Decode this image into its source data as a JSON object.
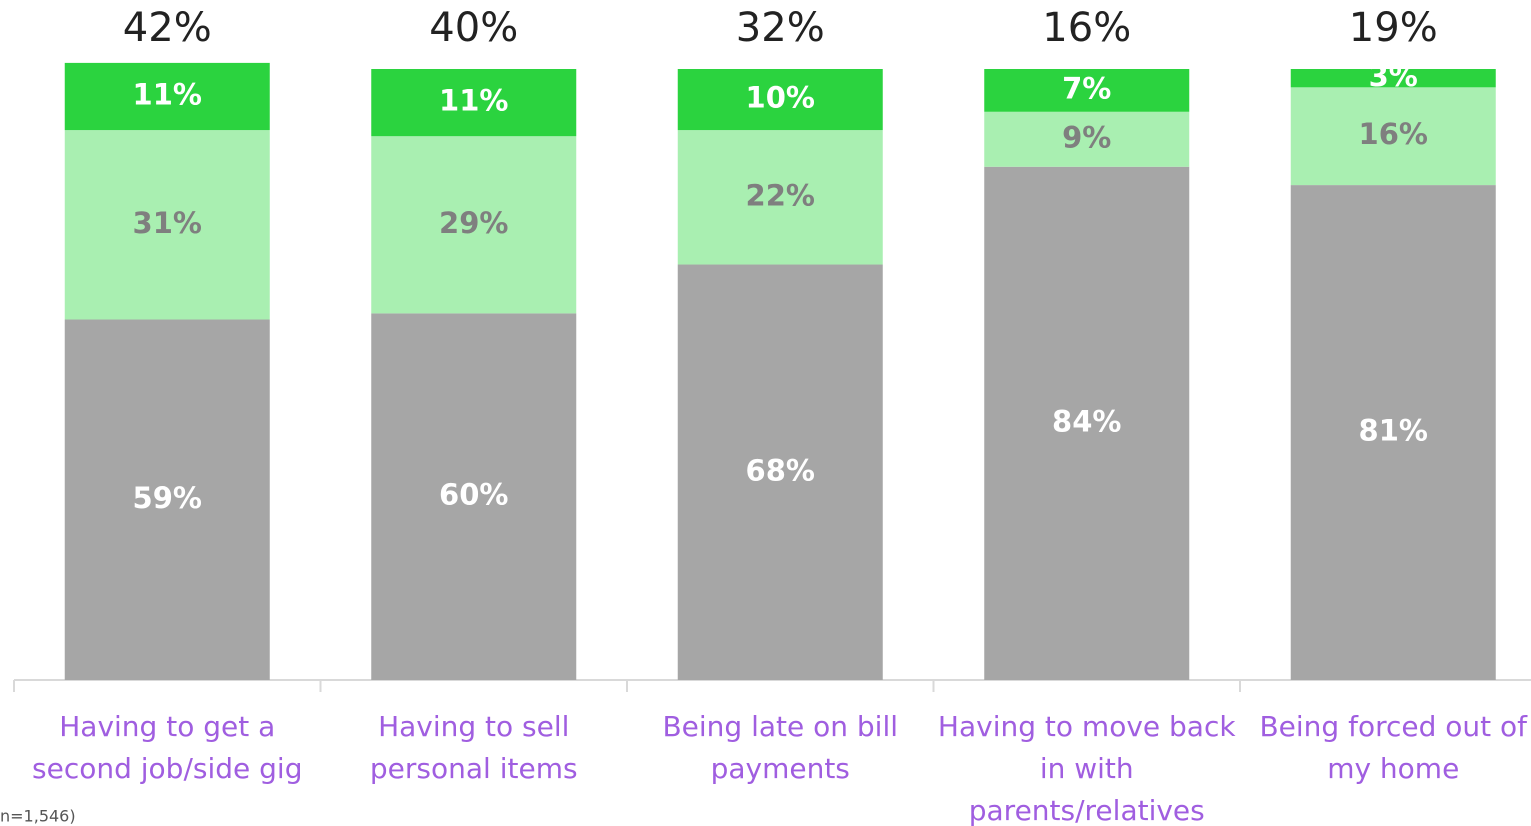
{
  "chart_data": {
    "type": "stacked_bar",
    "categories": [
      "Having to get a second job/side gig",
      "Having to sell personal items",
      "Being late on bill payments",
      "Having to move back in with parents/relatives",
      "Being forced out of my home"
    ],
    "series": [
      {
        "color": "#a6a6a6",
        "values": [
          59,
          60,
          68,
          84,
          81
        ],
        "value_labels": [
          "59%",
          "60%",
          "68%",
          "84%",
          "81%"
        ],
        "label_color": "#ffffff"
      },
      {
        "color": "#a9efb1",
        "values": [
          31,
          29,
          22,
          9,
          16
        ],
        "value_labels": [
          "31%",
          "29%",
          "22%",
          "9%",
          "16%"
        ],
        "label_color": "#7f7f7f"
      },
      {
        "color": "#2bd33f",
        "values": [
          11,
          11,
          10,
          7,
          3
        ],
        "value_labels": [
          "11%",
          "11%",
          "10%",
          "7%",
          "3%"
        ],
        "label_color": "#ffffff"
      }
    ],
    "annotations": [
      "42%",
      "40%",
      "32%",
      "16%",
      "19%"
    ],
    "note": "n=1,546)",
    "ylim": [
      0,
      100
    ]
  }
}
